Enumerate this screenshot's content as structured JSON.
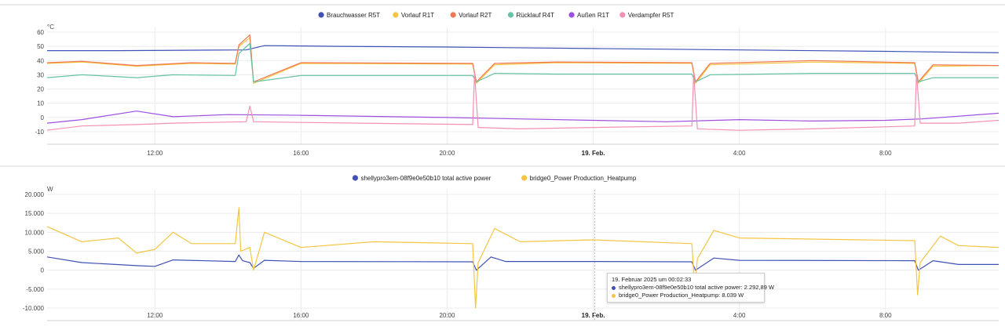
{
  "chart_data": [
    {
      "type": "line",
      "unit": "°C",
      "ylim": [
        -10,
        60
      ],
      "yticks": [
        "60",
        "50",
        "40",
        "30",
        "20",
        "10",
        "0",
        "-10"
      ],
      "xticks": [
        {
          "label": "12:00",
          "t": 12,
          "bold": false
        },
        {
          "label": "16:00",
          "t": 16,
          "bold": false
        },
        {
          "label": "20:00",
          "t": 20,
          "bold": false
        },
        {
          "label": "19. Feb.",
          "t": 24,
          "bold": true
        },
        {
          "label": "4:00",
          "t": 28,
          "bold": false
        },
        {
          "label": "8:00",
          "t": 32,
          "bold": false
        }
      ],
      "xlim": [
        9.05,
        35.1
      ],
      "grid": true,
      "legend_position": "top-center",
      "series": [
        {
          "name": "Brauchwasser R5T",
          "color": "#3f51b5",
          "x": [
            9.05,
            11,
            14.5,
            15,
            17,
            20,
            24,
            28,
            32,
            35.1
          ],
          "y": [
            47,
            47,
            47.5,
            50.5,
            50,
            49.5,
            48.5,
            47.5,
            46.5,
            45.5
          ]
        },
        {
          "name": "Vorlauf R1T",
          "color": "#f4c542",
          "x": [
            9.05,
            10,
            11.5,
            13,
            14.2,
            14.3,
            14.6,
            14.7,
            16,
            20.7,
            20.8,
            21.3,
            23,
            26.7,
            26.8,
            27.2,
            30,
            32.8,
            32.9,
            33.3,
            35.1
          ],
          "y": [
            38,
            39,
            36,
            38,
            37.5,
            50,
            56,
            24,
            38,
            37.5,
            24,
            37,
            38.5,
            38,
            24,
            37,
            39,
            38,
            24,
            36,
            36.5
          ]
        },
        {
          "name": "Vorlauf R2T",
          "color": "#f07850",
          "x": [
            9.05,
            10,
            11.5,
            13,
            14.2,
            14.3,
            14.6,
            14.7,
            16,
            20.7,
            20.8,
            21.3,
            23,
            26.7,
            26.8,
            27.2,
            30,
            32.8,
            32.9,
            33.3,
            35.1
          ],
          "y": [
            38.5,
            39.5,
            36.5,
            38.5,
            38,
            51,
            58,
            25,
            38.5,
            38,
            25,
            38,
            39,
            38.5,
            25,
            38,
            40,
            38.5,
            25,
            37,
            36.5
          ]
        },
        {
          "name": "Rücklauf R4T",
          "color": "#66c2a5",
          "x": [
            9.05,
            10,
            11.5,
            12.5,
            14.2,
            14.3,
            14.6,
            14.7,
            16,
            20.7,
            20.8,
            21.3,
            23,
            26.7,
            26.8,
            27.2,
            30,
            32.8,
            32.9,
            33.3,
            35.1
          ],
          "y": [
            28,
            30,
            28,
            30,
            29.5,
            45,
            52,
            25,
            29.5,
            29.5,
            25,
            31,
            30.5,
            30.5,
            25,
            30,
            31,
            31,
            25,
            28,
            28
          ]
        },
        {
          "name": "Außen R1T",
          "color": "#9c4fe0",
          "x": [
            9.05,
            10,
            11.5,
            12.5,
            14,
            16,
            20,
            24,
            26,
            28,
            30,
            32,
            33,
            35.1
          ],
          "y": [
            -4,
            -1.5,
            4.5,
            0.5,
            2,
            1.5,
            0,
            -2,
            -3,
            -1.5,
            -2.5,
            -2,
            -1,
            3
          ]
        },
        {
          "name": "Verdampfer R5T",
          "color": "#f48fb1",
          "x": [
            9.05,
            10,
            11.5,
            12.5,
            14.5,
            14.6,
            14.7,
            16,
            20.7,
            20.75,
            20.85,
            22,
            24,
            26.7,
            26.75,
            26.85,
            28,
            30,
            32.8,
            32.85,
            32.95,
            34,
            35.1
          ],
          "y": [
            -9,
            -6,
            -5,
            -4,
            -3,
            8,
            -3,
            -3.5,
            -5,
            31,
            -7,
            -8,
            -7,
            -6,
            31,
            -8,
            -9,
            -8,
            -6,
            31,
            -4,
            -4,
            -2
          ]
        }
      ]
    },
    {
      "type": "line",
      "unit": "W",
      "ylim": [
        -10000,
        20000
      ],
      "yticks": [
        "20.000",
        "15.000",
        "10.000",
        "5.000",
        "0",
        "-5.000",
        "-10.000"
      ],
      "xticks": [
        {
          "label": "12:00",
          "t": 12,
          "bold": false
        },
        {
          "label": "16:00",
          "t": 16,
          "bold": false
        },
        {
          "label": "20:00",
          "t": 20,
          "bold": false
        },
        {
          "label": "19. Feb.",
          "t": 24,
          "bold": true
        },
        {
          "label": "4:00",
          "t": 28,
          "bold": false
        },
        {
          "label": "8:00",
          "t": 32,
          "bold": false
        }
      ],
      "xlim": [
        9.05,
        35.1
      ],
      "grid": true,
      "legend_position": "top-center",
      "cursor_t": 24.04,
      "series": [
        {
          "name": "shellypro3em-08f9e0e50b10 total active power",
          "color": "#3f51b5",
          "x": [
            9.05,
            10,
            11.5,
            12,
            12.5,
            14.2,
            14.3,
            14.4,
            14.6,
            14.7,
            15,
            16,
            20.7,
            20.8,
            21.2,
            21.6,
            24,
            26.7,
            26.8,
            27.3,
            28,
            32.8,
            32.9,
            33.3,
            34,
            35.1
          ],
          "y": [
            3500,
            2000,
            1200,
            1000,
            2700,
            2300,
            4000,
            2500,
            2000,
            500,
            2600,
            2300,
            2200,
            0,
            3500,
            2300,
            2300,
            2200,
            0,
            3200,
            2600,
            2500,
            0,
            2500,
            1500,
            1500
          ]
        },
        {
          "name": "bridge0_Power Production_Heatpump",
          "color": "#f4c542",
          "x": [
            9.05,
            10,
            11,
            11.5,
            12,
            12.5,
            13,
            14.2,
            14.3,
            14.35,
            14.6,
            14.7,
            15,
            16,
            18,
            20.7,
            20.78,
            20.85,
            21.3,
            22,
            24,
            26.7,
            26.78,
            26.85,
            27.3,
            28,
            32.8,
            32.88,
            32.95,
            33.5,
            34,
            35.1
          ],
          "y": [
            11500,
            7500,
            8500,
            4500,
            5500,
            10000,
            7000,
            7000,
            16500,
            5000,
            6000,
            0,
            10000,
            6000,
            7500,
            7000,
            -10000,
            2000,
            11000,
            7500,
            8000,
            7000,
            -5000,
            3000,
            10500,
            8500,
            7800,
            -6500,
            2000,
            9000,
            6500,
            6000
          ]
        }
      ]
    }
  ],
  "tooltip": {
    "title": "19. Februar 2025 um 00:02:33",
    "rows": [
      {
        "text": "shellypro3em-08f9e0e50b10 total active power: 2.292,89 W",
        "color": "#3f51b5"
      },
      {
        "text": "bridge0_Power Production_Heatpump: 8.039 W",
        "color": "#f4c542"
      }
    ]
  }
}
